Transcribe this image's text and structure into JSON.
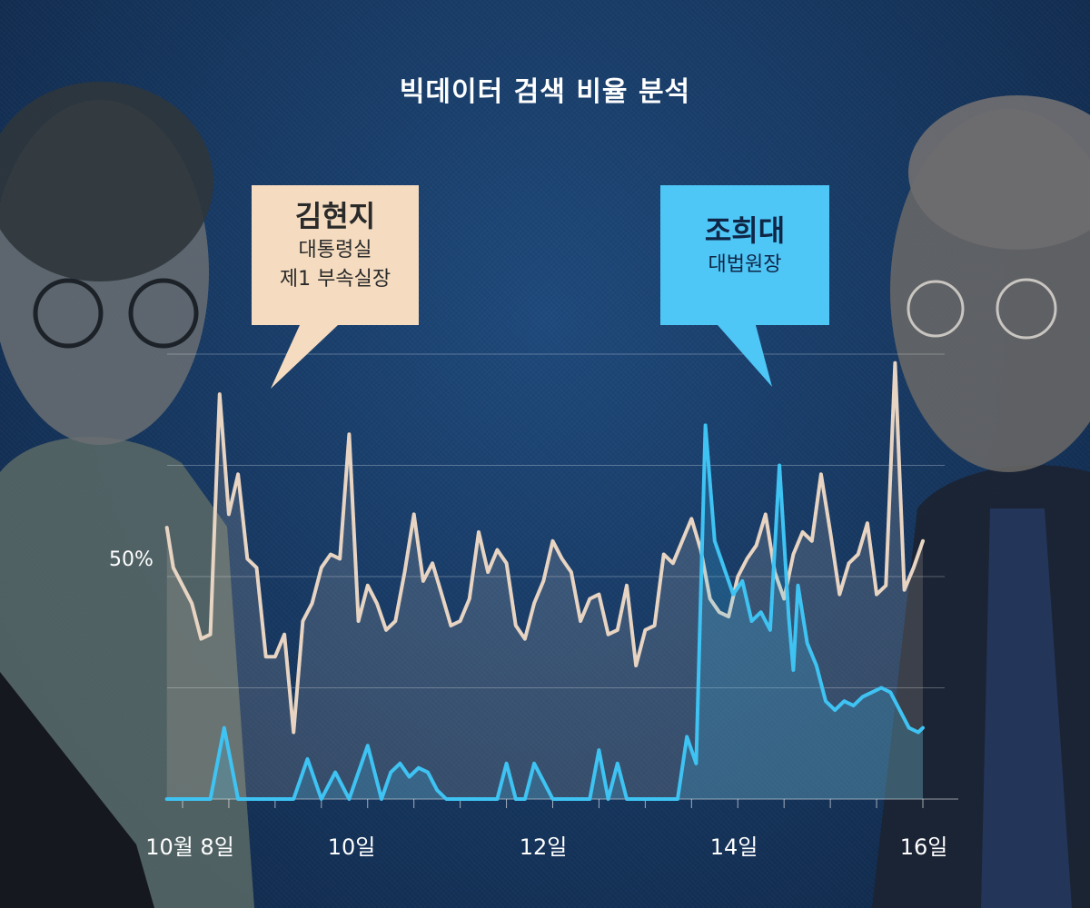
{
  "title": "빅데이터 검색 비율 분석",
  "callouts": {
    "kim": {
      "name": "김현지",
      "role_line1": "대통령실",
      "role_line2": "제1 부속실장"
    },
    "cho": {
      "name": "조희대",
      "role_line1": "대법원장"
    }
  },
  "chart_data": {
    "type": "area",
    "title": "빅데이터 검색 비율 분석",
    "x_range": [
      8,
      16
    ],
    "x_ticks": [
      {
        "x": 8,
        "label": "10월 8일"
      },
      {
        "x": 10,
        "label": "10일"
      },
      {
        "x": 12,
        "label": "12일"
      },
      {
        "x": 14,
        "label": "14일"
      },
      {
        "x": 16,
        "label": "16일"
      }
    ],
    "y_range": [
      0,
      100
    ],
    "y_gridlines": [
      25,
      50,
      75,
      100
    ],
    "y_label": {
      "value": 50,
      "text": "50%"
    },
    "colors": {
      "kim": "#e8d4c2",
      "cho": "#3ec3f3"
    },
    "series": [
      {
        "name": "김현지",
        "x": [
          7.83,
          7.9,
          8.0,
          8.1,
          8.2,
          8.3,
          8.4,
          8.5,
          8.6,
          8.7,
          8.8,
          8.9,
          9.0,
          9.1,
          9.2,
          9.3,
          9.4,
          9.5,
          9.6,
          9.7,
          9.8,
          9.9,
          10.0,
          10.1,
          10.2,
          10.3,
          10.4,
          10.5,
          10.6,
          10.7,
          10.8,
          10.9,
          11.0,
          11.1,
          11.2,
          11.3,
          11.4,
          11.5,
          11.6,
          11.7,
          11.8,
          11.9,
          12.0,
          12.1,
          12.2,
          12.3,
          12.4,
          12.5,
          12.6,
          12.7,
          12.8,
          12.9,
          13.0,
          13.1,
          13.2,
          13.3,
          13.4,
          13.5,
          13.6,
          13.7,
          13.8,
          13.9,
          14.0,
          14.1,
          14.2,
          14.3,
          14.4,
          14.5,
          14.6,
          14.7,
          14.8,
          14.9,
          15.0,
          15.1,
          15.2,
          15.3,
          15.4,
          15.5,
          15.6,
          15.7,
          15.8,
          15.9,
          16.0
        ],
        "values": [
          61,
          52,
          48,
          44,
          36,
          37,
          91,
          64,
          73,
          54,
          52,
          32,
          32,
          37,
          15,
          40,
          44,
          52,
          55,
          54,
          82,
          40,
          48,
          44,
          38,
          40,
          51,
          64,
          49,
          53,
          46,
          39,
          40,
          45,
          60,
          51,
          56,
          53,
          39,
          36,
          44,
          49,
          58,
          54,
          51,
          40,
          45,
          46,
          37,
          38,
          48,
          30,
          38,
          39,
          55,
          53,
          58,
          63,
          56,
          45,
          42,
          41,
          50,
          54,
          57,
          64,
          51,
          45,
          55,
          60,
          58,
          73,
          60,
          46,
          53,
          55,
          62,
          46,
          48,
          98,
          47,
          52,
          58
        ]
      },
      {
        "name": "조희대",
        "x": [
          7.83,
          8.3,
          8.45,
          8.6,
          9.2,
          9.35,
          9.5,
          9.65,
          9.8,
          10.0,
          10.15,
          10.25,
          10.35,
          10.45,
          10.55,
          10.65,
          10.75,
          10.85,
          11.0,
          11.4,
          11.5,
          11.6,
          11.7,
          11.8,
          12.0,
          12.4,
          12.5,
          12.6,
          12.7,
          12.8,
          13.0,
          13.35,
          13.45,
          13.55,
          13.65,
          13.75,
          13.85,
          13.95,
          14.05,
          14.15,
          14.25,
          14.35,
          14.45,
          14.55,
          14.6,
          14.65,
          14.75,
          14.85,
          14.95,
          15.05,
          15.15,
          15.25,
          15.35,
          15.45,
          15.55,
          15.65,
          15.75,
          15.85,
          15.95,
          16.0
        ],
        "values": [
          0,
          0,
          16,
          0,
          0,
          9,
          0,
          6,
          0,
          12,
          0,
          6,
          8,
          5,
          7,
          6,
          2,
          0,
          0,
          0,
          8,
          0,
          0,
          8,
          0,
          0,
          11,
          0,
          8,
          0,
          0,
          0,
          14,
          8,
          84,
          58,
          52,
          46,
          49,
          40,
          42,
          38,
          75,
          41,
          29,
          48,
          35,
          30,
          22,
          20,
          22,
          21,
          23,
          24,
          25,
          24,
          20,
          16,
          15,
          16
        ]
      }
    ]
  }
}
